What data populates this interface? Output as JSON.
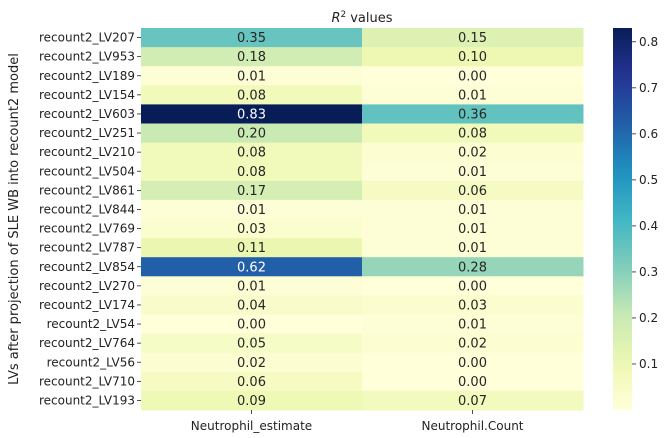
{
  "chart_data": {
    "type": "heatmap",
    "title": "values",
    "title_math": "R",
    "title_sup": "2",
    "ylabel": "LVs after projection of SLE WB into recount2 model",
    "xlabel": "",
    "columns": [
      "Neutrophil_estimate",
      "Neutrophil.Count"
    ],
    "rows": [
      "recount2_LV207",
      "recount2_LV953",
      "recount2_LV189",
      "recount2_LV154",
      "recount2_LV603",
      "recount2_LV251",
      "recount2_LV210",
      "recount2_LV504",
      "recount2_LV861",
      "recount2_LV844",
      "recount2_LV769",
      "recount2_LV787",
      "recount2_LV854",
      "recount2_LV270",
      "recount2_LV174",
      "recount2_LV54",
      "recount2_LV764",
      "recount2_LV56",
      "recount2_LV710",
      "recount2_LV193"
    ],
    "values": [
      [
        0.35,
        0.15
      ],
      [
        0.18,
        0.1
      ],
      [
        0.01,
        0.0
      ],
      [
        0.08,
        0.01
      ],
      [
        0.83,
        0.36
      ],
      [
        0.2,
        0.08
      ],
      [
        0.08,
        0.02
      ],
      [
        0.08,
        0.01
      ],
      [
        0.17,
        0.06
      ],
      [
        0.01,
        0.01
      ],
      [
        0.03,
        0.01
      ],
      [
        0.11,
        0.01
      ],
      [
        0.62,
        0.28
      ],
      [
        0.01,
        0.0
      ],
      [
        0.04,
        0.03
      ],
      [
        0.0,
        0.01
      ],
      [
        0.05,
        0.02
      ],
      [
        0.02,
        0.0
      ],
      [
        0.06,
        0.0
      ],
      [
        0.09,
        0.07
      ]
    ],
    "colormap": "YlGnBu",
    "vmin": 0.0,
    "vmax": 0.83,
    "colorbar_ticks": [
      "0.1",
      "0.2",
      "0.3",
      "0.4",
      "0.5",
      "0.6",
      "0.7",
      "0.8"
    ]
  }
}
